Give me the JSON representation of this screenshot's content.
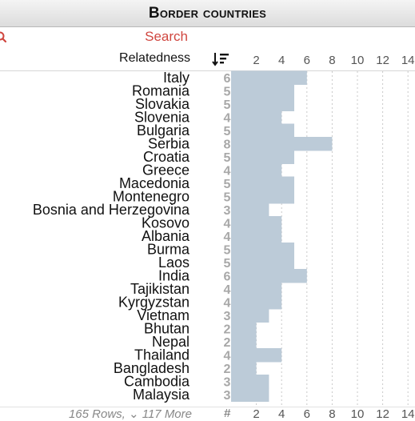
{
  "title": "Border countries",
  "search": {
    "label": "Search",
    "icon": "search-icon"
  },
  "column_header": "Relatedness",
  "sort_icon": "sort-descending-icon",
  "footer": {
    "rows": "165 Rows,",
    "more": "⌄ 117 More",
    "hash": "#"
  },
  "colors": {
    "bar": "#bccbd8",
    "accent": "#d0463f"
  },
  "chart_data": {
    "type": "bar",
    "orientation": "horizontal",
    "title": "Border countries",
    "xlabel": "",
    "ylabel": "Relatedness",
    "xlim": [
      0,
      14.5
    ],
    "grid": true,
    "ticks_top": [
      "2",
      "4",
      "6",
      "8",
      "10",
      "12",
      "14"
    ],
    "ticks_bottom": [
      "2",
      "4",
      "6",
      "8",
      "10",
      "12",
      "14"
    ],
    "categories": [
      "Italy",
      "Romania",
      "Slovakia",
      "Slovenia",
      "Bulgaria",
      "Serbia",
      "Croatia",
      "Greece",
      "Macedonia",
      "Montenegro",
      "Bosnia and Herzegovina",
      "Kosovo",
      "Albania",
      "Burma",
      "Laos",
      "India",
      "Tajikistan",
      "Kyrgyzstan",
      "Vietnam",
      "Bhutan",
      "Nepal",
      "Thailand",
      "Bangladesh",
      "Cambodia",
      "Malaysia"
    ],
    "values": [
      6,
      5,
      5,
      4,
      5,
      8,
      5,
      4,
      5,
      5,
      3,
      4,
      4,
      5,
      5,
      6,
      4,
      4,
      3,
      2,
      2,
      4,
      2,
      3,
      3
    ]
  }
}
